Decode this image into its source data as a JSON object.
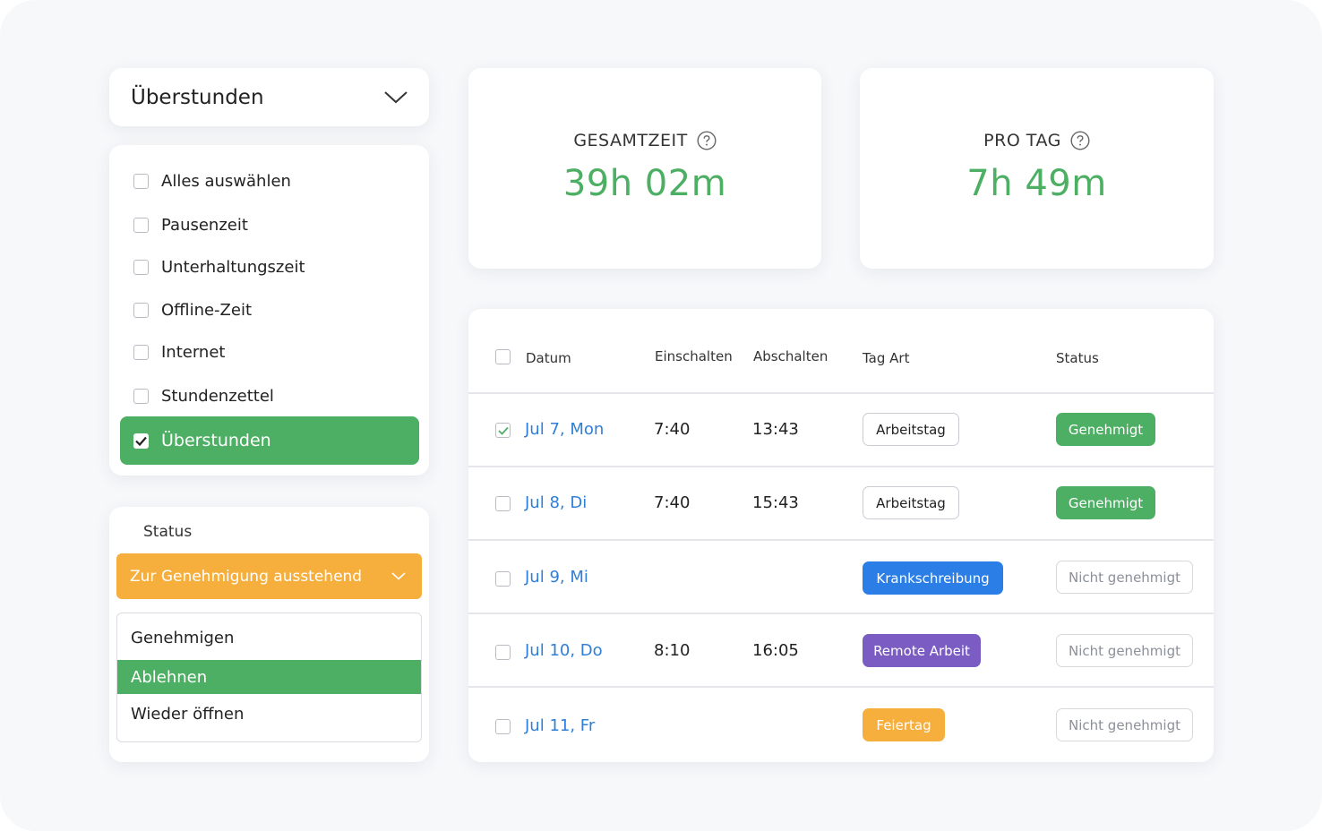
{
  "category_dropdown": {
    "value": "Überstunden",
    "icon": "chevron-down-icon"
  },
  "checklist": {
    "items": [
      {
        "label": "Alles auswählen",
        "checked": false
      },
      {
        "label": "Pausenzeit",
        "checked": false
      },
      {
        "label": "Unterhaltungszeit",
        "checked": false
      },
      {
        "label": "Offline-Zeit",
        "checked": false
      },
      {
        "label": "Internet",
        "checked": false
      },
      {
        "label": "Stundenzettel",
        "checked": false
      },
      {
        "label": "Überstunden",
        "checked": true
      }
    ]
  },
  "status_filter": {
    "title": "Status",
    "selected": "Zur Genehmigung ausstehend",
    "options": [
      "Genehmigen",
      "Ablehnen",
      "Wieder öffnen"
    ],
    "highlighted_option": "Ablehnen"
  },
  "stats": {
    "total": {
      "label": "GESAMTZEIT",
      "value": "39h 02m"
    },
    "per_day": {
      "label": "PRO TAG",
      "value": "7h 49m"
    }
  },
  "table": {
    "headers": [
      "Datum",
      "Einschalten",
      "Abschalten",
      "Tag Art",
      "Status"
    ],
    "rows": [
      {
        "date": "Jul 7, Mon",
        "clock_in": "7:40",
        "clock_out": "13:43",
        "day_type": "Arbeitstag",
        "status": "Genehmigt",
        "checked": true
      },
      {
        "date": "Jul 8, Di",
        "clock_in": "7:40",
        "clock_out": "15:43",
        "day_type": "Arbeitstag",
        "status": "Genehmigt",
        "checked": false
      },
      {
        "date": "Jul 9, Mi",
        "clock_in": "",
        "clock_out": "",
        "day_type": "Krankschreibung",
        "status": "Nicht genehmigt",
        "checked": false
      },
      {
        "date": "Jul 10, Do",
        "clock_in": "8:10",
        "clock_out": "16:05",
        "day_type": "Remote Arbeit",
        "status": "Nicht genehmigt",
        "checked": false
      },
      {
        "date": "Jul 11, Fr",
        "clock_in": "",
        "clock_out": "",
        "day_type": "Feiertag",
        "status": "Nicht genehmigt",
        "checked": false
      }
    ]
  },
  "colors": {
    "accent_green": "#4caf63",
    "link_blue": "#2f7fd8",
    "pending_orange": "#f6ae3c",
    "sick_blue": "#2a7ee6",
    "remote_purple": "#7a5cc3"
  }
}
